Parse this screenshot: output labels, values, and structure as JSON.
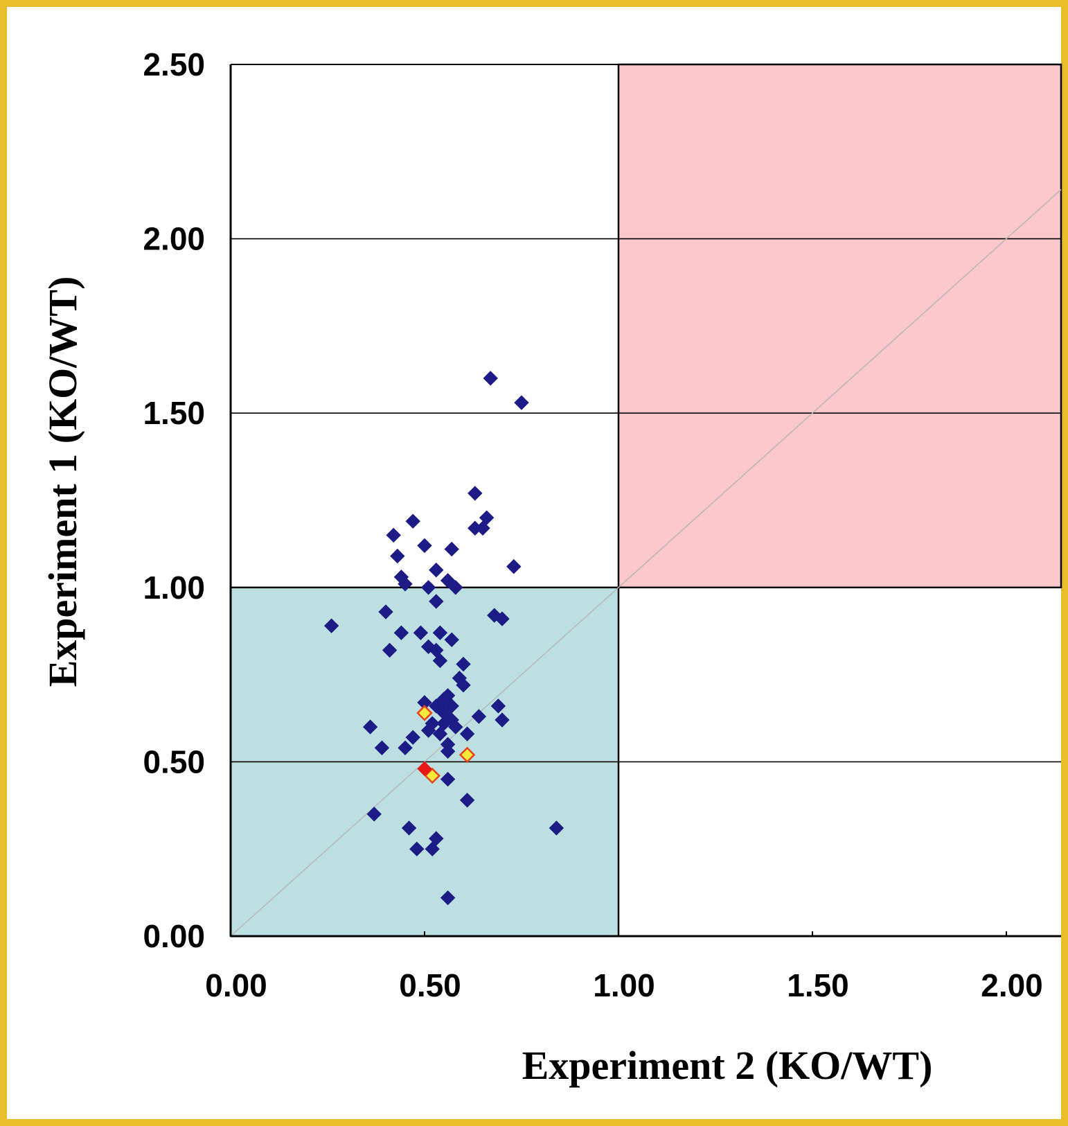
{
  "chart_data": {
    "type": "scatter",
    "title": "",
    "xlabel": "Experiment 2 (KO/WT)",
    "ylabel": "Experiment 1 (KO/WT)",
    "xlim": [
      0,
      2.18
    ],
    "ylim": [
      0,
      2.5
    ],
    "x_ticks": [
      "0.00",
      "0.50",
      "1.00",
      "1.50",
      "2.00"
    ],
    "y_ticks": [
      "0.00",
      "0.50",
      "1.00",
      "1.50",
      "2.00",
      "2.50"
    ],
    "grid": "horizontal",
    "diagonal_reference_line": true,
    "regions": [
      {
        "x": [
          0,
          1
        ],
        "y": [
          0,
          1
        ],
        "color": "#bce0e1"
      },
      {
        "x": [
          1,
          2.18
        ],
        "y": [
          1,
          2.5
        ],
        "color": "#fdc8cc"
      }
    ],
    "colors": {
      "primary_points": "#1d1b86",
      "highlight_points_fill": "#f7ea3a",
      "highlight_points_edge": "#e7431c",
      "red_point": "#e81818",
      "frame": "#e9bd2a"
    },
    "series": [
      {
        "color": "#1d1b86",
        "points": [
          [
            0.67,
            1.6
          ],
          [
            0.75,
            1.53
          ],
          [
            0.63,
            1.27
          ],
          [
            0.66,
            1.2
          ],
          [
            0.63,
            1.17
          ],
          [
            0.65,
            1.17
          ],
          [
            0.47,
            1.19
          ],
          [
            0.42,
            1.15
          ],
          [
            0.5,
            1.12
          ],
          [
            0.57,
            1.11
          ],
          [
            0.43,
            1.09
          ],
          [
            0.73,
            1.06
          ],
          [
            0.53,
            1.05
          ],
          [
            0.44,
            1.03
          ],
          [
            0.45,
            1.01
          ],
          [
            0.51,
            1.0
          ],
          [
            0.56,
            1.02
          ],
          [
            0.58,
            1.0
          ],
          [
            0.4,
            0.93
          ],
          [
            0.53,
            0.96
          ],
          [
            0.68,
            0.92
          ],
          [
            0.7,
            0.91
          ],
          [
            0.26,
            0.89
          ],
          [
            0.44,
            0.87
          ],
          [
            0.49,
            0.87
          ],
          [
            0.54,
            0.87
          ],
          [
            0.57,
            0.85
          ],
          [
            0.51,
            0.83
          ],
          [
            0.53,
            0.82
          ],
          [
            0.41,
            0.82
          ],
          [
            0.54,
            0.79
          ],
          [
            0.6,
            0.78
          ],
          [
            0.59,
            0.74
          ],
          [
            0.6,
            0.72
          ],
          [
            0.56,
            0.69
          ],
          [
            0.55,
            0.68
          ],
          [
            0.5,
            0.67
          ],
          [
            0.53,
            0.66
          ],
          [
            0.57,
            0.66
          ],
          [
            0.69,
            0.66
          ],
          [
            0.55,
            0.64
          ],
          [
            0.64,
            0.63
          ],
          [
            0.57,
            0.62
          ],
          [
            0.52,
            0.61
          ],
          [
            0.55,
            0.61
          ],
          [
            0.7,
            0.62
          ],
          [
            0.36,
            0.6
          ],
          [
            0.58,
            0.6
          ],
          [
            0.51,
            0.59
          ],
          [
            0.54,
            0.58
          ],
          [
            0.61,
            0.58
          ],
          [
            0.47,
            0.57
          ],
          [
            0.56,
            0.55
          ],
          [
            0.39,
            0.54
          ],
          [
            0.45,
            0.54
          ],
          [
            0.56,
            0.53
          ],
          [
            0.56,
            0.45
          ],
          [
            0.61,
            0.39
          ],
          [
            0.37,
            0.35
          ],
          [
            0.46,
            0.31
          ],
          [
            0.53,
            0.28
          ],
          [
            0.52,
            0.25
          ],
          [
            0.48,
            0.25
          ],
          [
            0.84,
            0.31
          ],
          [
            0.56,
            0.11
          ]
        ]
      },
      {
        "color": "#f7ea3a",
        "points": [
          [
            0.5,
            0.64
          ],
          [
            0.61,
            0.52
          ],
          [
            0.52,
            0.46
          ]
        ]
      },
      {
        "color": "#e81818",
        "points": [
          [
            0.5,
            0.48
          ]
        ]
      }
    ]
  }
}
